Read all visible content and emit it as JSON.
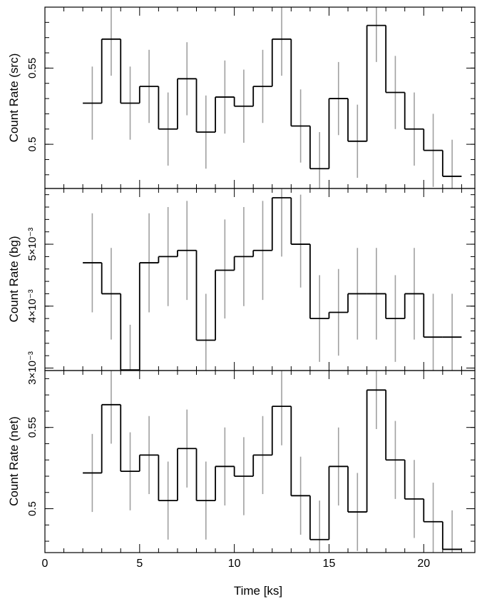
{
  "chart_data": [
    {
      "type": "line",
      "step": true,
      "ylabel": "Count Rate (src)",
      "xlim": [
        0,
        22.7
      ],
      "ylim": [
        0.471,
        0.59
      ],
      "yticks": [
        0.5,
        0.55
      ],
      "ytick_labels": [
        "0.5",
        "0.55"
      ],
      "x": [
        2.5,
        3.5,
        4.5,
        5.5,
        6.5,
        7.5,
        8.5,
        9.5,
        10.5,
        11.5,
        12.5,
        13.5,
        14.5,
        15.5,
        16.5,
        17.5,
        18.5,
        19.5,
        20.5,
        21.5
      ],
      "values": [
        0.527,
        0.569,
        0.527,
        0.538,
        0.51,
        0.543,
        0.508,
        0.531,
        0.525,
        0.538,
        0.569,
        0.512,
        0.484,
        0.53,
        0.502,
        0.578,
        0.534,
        0.51,
        0.496,
        0.479
      ],
      "err_lo": [
        0.503,
        0.545,
        0.503,
        0.514,
        0.486,
        0.519,
        0.484,
        0.507,
        0.501,
        0.514,
        0.545,
        0.488,
        0.46,
        0.506,
        0.478,
        0.554,
        0.51,
        0.486,
        0.472,
        0.455
      ],
      "err_hi": [
        0.551,
        0.593,
        0.551,
        0.562,
        0.534,
        0.567,
        0.532,
        0.555,
        0.549,
        0.562,
        0.593,
        0.536,
        0.508,
        0.554,
        0.526,
        0.602,
        0.558,
        0.534,
        0.52,
        0.503
      ]
    },
    {
      "type": "line",
      "step": true,
      "ylabel": "Count Rate (bg)",
      "xlim": [
        0,
        22.7
      ],
      "ylim": [
        0.00296,
        0.0059
      ],
      "yticks": [
        0.003,
        0.004,
        0.005
      ],
      "ytick_labels": [
        "3×10⁻³",
        "4×10⁻³",
        "5×10⁻³"
      ],
      "x": [
        2.5,
        3.5,
        4.5,
        5.5,
        6.5,
        7.5,
        8.5,
        9.5,
        10.5,
        11.5,
        12.5,
        13.5,
        14.5,
        15.5,
        16.5,
        17.5,
        18.5,
        19.5,
        20.5,
        21.5
      ],
      "values": [
        0.0047,
        0.0042,
        0.00297,
        0.0047,
        0.0048,
        0.0049,
        0.00345,
        0.00458,
        0.0048,
        0.0049,
        0.00575,
        0.005,
        0.0038,
        0.0039,
        0.0042,
        0.0042,
        0.0038,
        0.0042,
        0.0035,
        0.0035
      ],
      "err_lo": [
        0.0039,
        0.00346,
        0.0022,
        0.0039,
        0.004,
        0.0041,
        0.0027,
        0.0038,
        0.004,
        0.0041,
        0.0048,
        0.0043,
        0.0031,
        0.0032,
        0.00346,
        0.00346,
        0.0031,
        0.00346,
        0.0028,
        0.0028
      ],
      "err_hi": [
        0.0055,
        0.00494,
        0.0037,
        0.0055,
        0.0056,
        0.0057,
        0.0042,
        0.0054,
        0.0056,
        0.0057,
        0.0067,
        0.0058,
        0.0045,
        0.0046,
        0.00494,
        0.00494,
        0.0045,
        0.00494,
        0.0042,
        0.0042
      ]
    },
    {
      "type": "line",
      "step": true,
      "ylabel": "Count Rate (net)",
      "xlabel": "Time [ks]",
      "xlim": [
        0,
        22.7
      ],
      "ylim": [
        0.473,
        0.585
      ],
      "yticks": [
        0.5,
        0.55
      ],
      "ytick_labels": [
        "0.5",
        "0.55"
      ],
      "x": [
        2.5,
        3.5,
        4.5,
        5.5,
        6.5,
        7.5,
        8.5,
        9.5,
        10.5,
        11.5,
        12.5,
        13.5,
        14.5,
        15.5,
        16.5,
        17.5,
        18.5,
        19.5,
        20.5,
        21.5
      ],
      "values": [
        0.522,
        0.564,
        0.523,
        0.533,
        0.505,
        0.537,
        0.505,
        0.526,
        0.52,
        0.533,
        0.563,
        0.508,
        0.481,
        0.526,
        0.498,
        0.573,
        0.53,
        0.506,
        0.492,
        0.475
      ],
      "err_lo": [
        0.498,
        0.54,
        0.499,
        0.509,
        0.481,
        0.513,
        0.481,
        0.502,
        0.496,
        0.509,
        0.539,
        0.484,
        0.457,
        0.502,
        0.474,
        0.549,
        0.506,
        0.482,
        0.468,
        0.451
      ],
      "err_hi": [
        0.546,
        0.588,
        0.547,
        0.557,
        0.529,
        0.561,
        0.529,
        0.55,
        0.544,
        0.557,
        0.587,
        0.532,
        0.505,
        0.55,
        0.522,
        0.597,
        0.554,
        0.53,
        0.516,
        0.499
      ],
      "xticks": [
        0,
        5,
        10,
        15,
        20
      ],
      "xtick_labels": [
        "0",
        "5",
        "10",
        "15",
        "20"
      ]
    }
  ],
  "colors": {
    "step_line": "#000000",
    "error_bars": "#a0a0a0",
    "axes": "#000000"
  }
}
